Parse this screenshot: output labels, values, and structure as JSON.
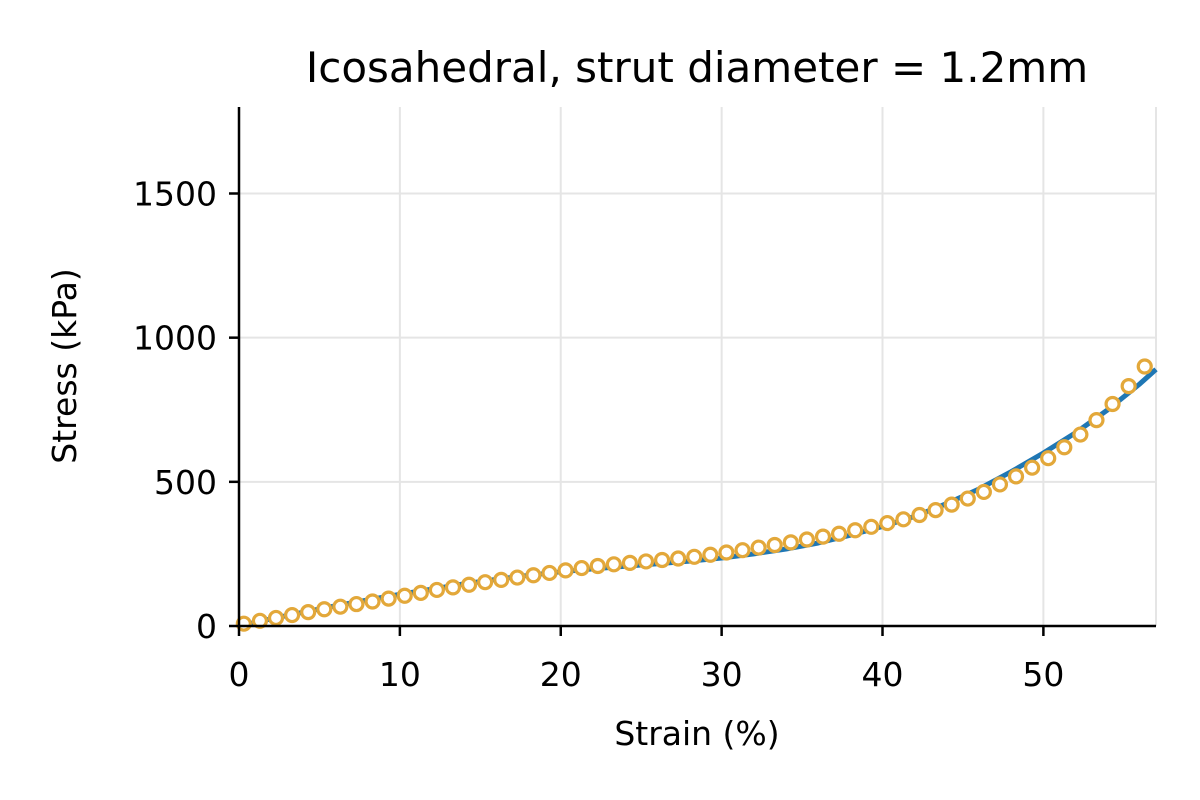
{
  "chart_data": {
    "type": "scatter",
    "title": "Icosahedral, strut diameter = 1.2mm",
    "xlabel": "Strain (%)",
    "ylabel": "Stress (kPa)",
    "xlim": [
      0,
      57
    ],
    "ylim": [
      0,
      1800
    ],
    "xticks": [
      0,
      10,
      20,
      30,
      40,
      50
    ],
    "yticks": [
      0,
      500,
      1000,
      1500
    ],
    "grid": true,
    "colors": {
      "line": "#1f77b4",
      "markers": "#e3a83a"
    },
    "series": [
      {
        "kind": "line",
        "x": [
          0,
          2,
          4,
          6,
          8,
          10,
          12,
          14,
          16,
          18,
          20,
          22,
          24,
          26,
          28,
          30,
          32,
          34,
          36,
          38,
          40,
          42,
          44,
          46,
          48,
          50,
          52,
          54,
          56,
          57
        ],
        "y": [
          0,
          25,
          48,
          70,
          90,
          110,
          128,
          146,
          162,
          176,
          188,
          198,
          207,
          216,
          225,
          236,
          250,
          267,
          288,
          315,
          345,
          380,
          425,
          475,
          535,
          600,
          670,
          750,
          840,
          890
        ]
      },
      {
        "kind": "scatter",
        "x": [
          0.3,
          1.3,
          2.3,
          3.3,
          4.3,
          5.3,
          6.3,
          7.3,
          8.3,
          9.3,
          10.3,
          11.3,
          12.3,
          13.3,
          14.3,
          15.3,
          16.3,
          17.3,
          18.3,
          19.3,
          20.3,
          21.3,
          22.3,
          23.3,
          24.3,
          25.3,
          26.3,
          27.3,
          28.3,
          29.3,
          30.3,
          31.3,
          32.3,
          33.3,
          34.3,
          35.3,
          36.3,
          37.3,
          38.3,
          39.3,
          40.3,
          41.3,
          42.3,
          43.3,
          44.3,
          45.3,
          46.3,
          47.3,
          48.3,
          49.3,
          50.3,
          51.3,
          52.3,
          53.3,
          54.3,
          55.3,
          56.3
        ],
        "y": [
          8,
          18,
          28,
          38,
          48,
          58,
          67,
          76,
          85,
          95,
          105,
          115,
          125,
          134,
          143,
          152,
          160,
          168,
          176,
          184,
          193,
          201,
          208,
          214,
          219,
          224,
          229,
          234,
          240,
          247,
          255,
          263,
          272,
          281,
          290,
          300,
          310,
          320,
          332,
          344,
          357,
          370,
          385,
          402,
          421,
          442,
          465,
          491,
          519,
          549,
          582,
          620,
          664,
          714,
          770,
          832,
          900
        ]
      }
    ]
  }
}
